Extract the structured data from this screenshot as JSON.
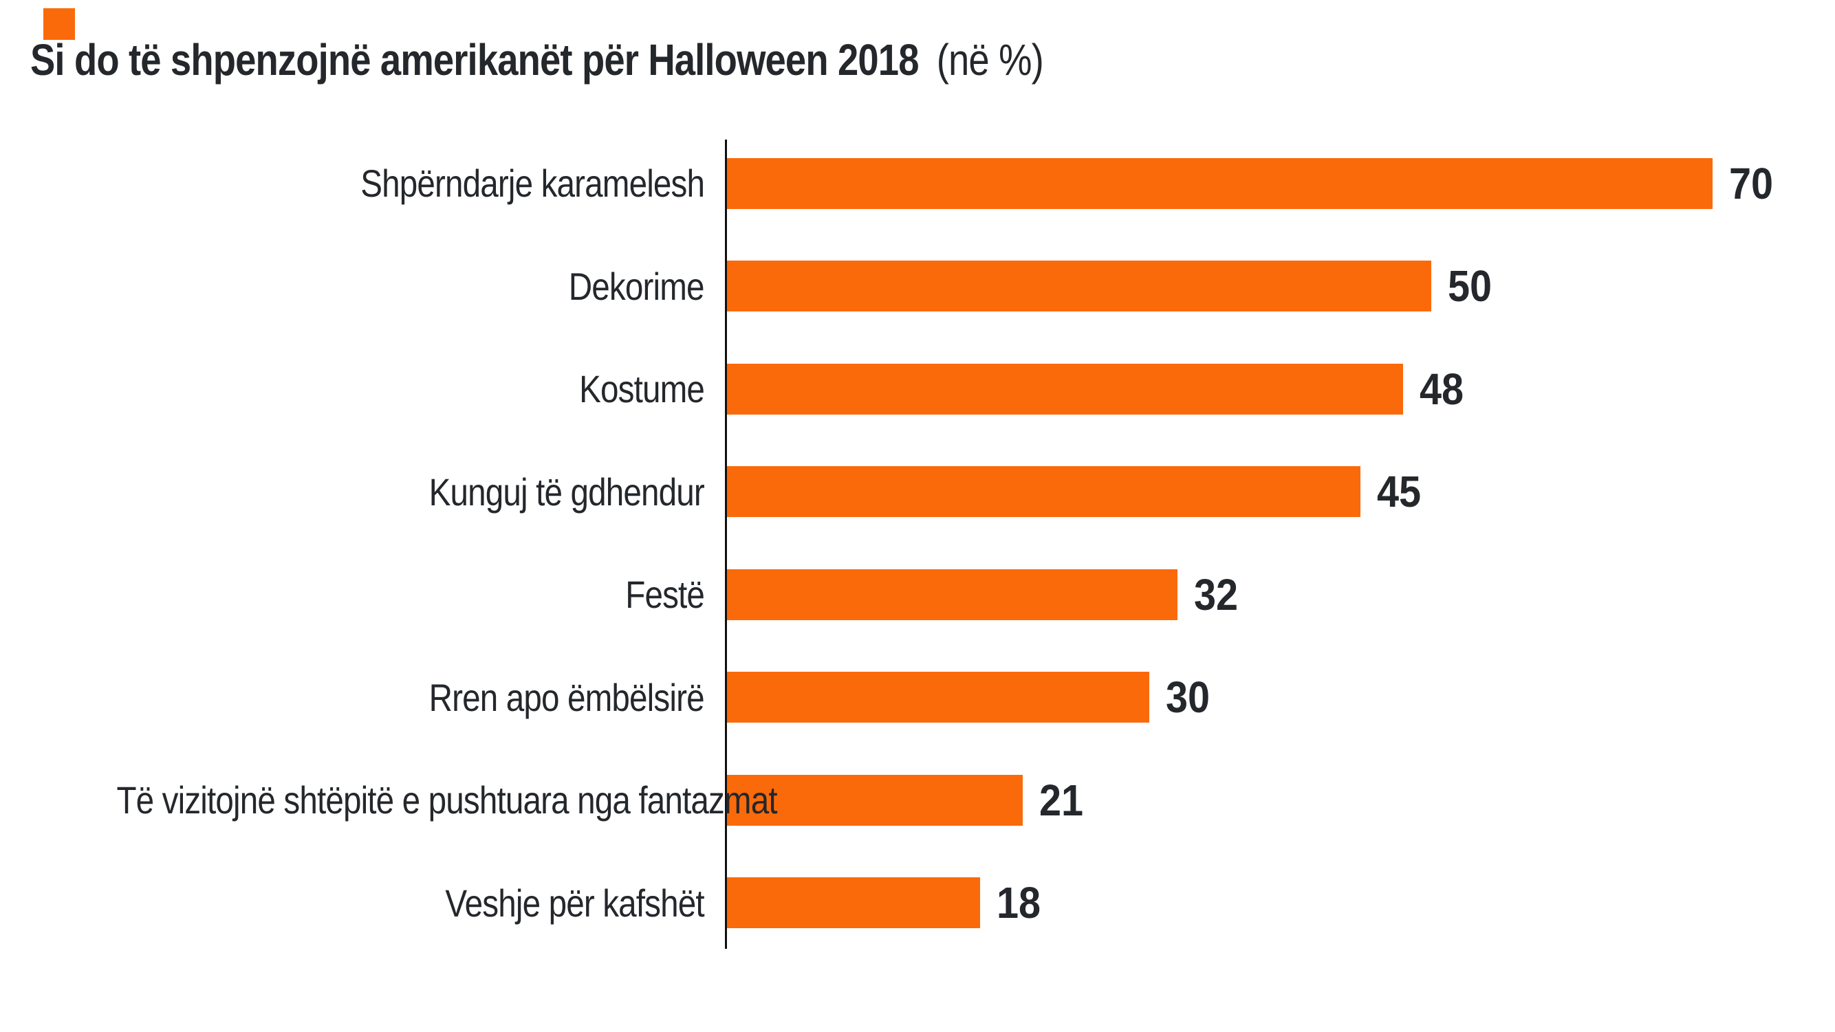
{
  "title": {
    "main": "Si do të shpenzojnë amerikanët për Halloween 2018",
    "suffix": "(në %)"
  },
  "brand": {
    "accent_color": "#FB6A0A"
  },
  "chart_data": {
    "type": "bar",
    "orientation": "horizontal",
    "title": "Si do të shpenzojnë amerikanët për Halloween 2018 (në %)",
    "unit": "%",
    "categories": [
      "Shpërndarje karamelesh",
      "Dekorime",
      "Kostume",
      "Kunguj të gdhendur",
      "Festë",
      "Rren apo ëmbëlsirë",
      "Të vizitojnë shtëpitë e pushtuara nga fantazmat",
      "Veshje për kafshët"
    ],
    "values": [
      70,
      50,
      48,
      45,
      32,
      30,
      21,
      18
    ],
    "xlabel": "",
    "ylabel": "",
    "xlim": [
      0,
      78
    ],
    "grid": false,
    "legend": false,
    "value_labels_position": "end-of-bar",
    "bar_color": "#FB6A0A",
    "text_color": "#24272B",
    "axis_color": "#101010",
    "background_color": "#FFFFFF"
  }
}
